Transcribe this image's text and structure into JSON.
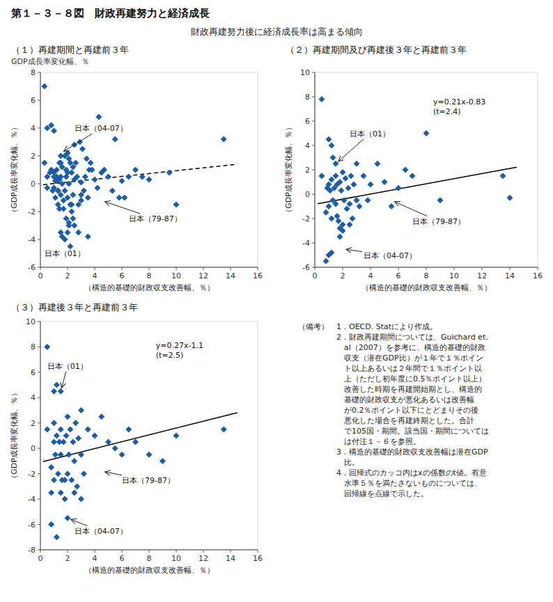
{
  "title": "第１－３－８図　財政再建努力と経済成長",
  "subtitle": "財政再建努力後に経済成長率は高まる傾向",
  "notes": "（備考）　1．OECD. Statにより作成。\n　　　　　2．財政再建期間については、Guichard et.\n　　　　　　al（2007）を参考に、構造的基礎的財政\n　　　　　　収支（潜在GDP比）が１年で１％ポイン\n　　　　　　ト以上あるいは２年間で１％ポイント以\n　　　　　　上（ただし初年度に0.5％ポイント以上）\n　　　　　　改善した時期を再建開始期とし、構造的\n　　　　　　基礎的財政収支が悪化あるいは改善幅\n　　　　　　が0.2％ポイント以下にとどまりその後\n　　　　　　悪化した場合を再建終期とした。合計\n　　　　　　で105国・期間。該当国・期間については\n　　　　　　は付注１－６を参照。\n　　　　　3．構造的基礎的財政収支改善幅は潜在GDP\n　　　　　　比。\n　　　　　4．回帰式のカッコ内はxの係数のt値。有意\n　　　　　　水準５％を満たさないものについては、\n　　　　　　回帰線を点線で示した。",
  "chart_data": [
    {
      "type": "scatter",
      "title": "（１）再建期間と再建前３年",
      "ylabel_top": "GDP成長率変化幅、％",
      "xlabel": "（構造的基礎的財政収支改善幅、％）",
      "ylabel": "（GDP成長率変化幅、％）",
      "xlim": [
        0,
        16
      ],
      "ylim": [
        -6,
        8
      ],
      "xticks": [
        0,
        2,
        4,
        6,
        8,
        10,
        12,
        14,
        16
      ],
      "yticks": [
        -6,
        -4,
        -2,
        0,
        2,
        4,
        6,
        8
      ],
      "series": [
        {
          "type": "scatter",
          "marker": "diamond",
          "color": "#1a5ea8",
          "x": [
            0.3,
            0.5,
            0.5,
            0.7,
            0.8,
            0.9,
            1.0,
            1.0,
            1.0,
            1.1,
            1.1,
            1.2,
            1.2,
            1.3,
            1.3,
            1.4,
            1.4,
            1.5,
            1.5,
            1.5,
            1.5,
            1.6,
            1.6,
            1.7,
            1.8,
            1.8,
            1.9,
            1.9,
            2.0,
            2.0,
            2.0,
            2.1,
            2.1,
            2.1,
            2.2,
            2.2,
            2.3,
            2.3,
            2.4,
            2.4,
            2.5,
            2.5,
            2.6,
            2.7,
            2.8,
            2.9,
            3.0,
            3.0,
            3.1,
            3.2,
            3.3,
            3.4,
            3.5,
            3.6,
            3.7,
            3.8,
            4.0,
            4.2,
            4.3,
            4.5,
            4.7,
            5.0,
            5.3,
            5.5,
            5.8,
            6.0,
            6.2,
            6.5,
            7.0,
            7.5,
            8.0,
            9.5,
            10.0,
            13.5,
            0.3,
            0.5,
            0.8,
            1.0,
            1.2,
            1.3,
            1.4,
            1.5,
            1.6,
            1.7,
            1.8,
            1.9,
            2.0,
            2.1,
            2.2,
            2.3,
            2.4,
            2.5,
            2.8,
            3.0,
            3.5
          ],
          "values": [
            1.5,
            0.5,
            -0.3,
            0.8,
            1.0,
            -0.5,
            -0.3,
            0.5,
            0.8,
            0.2,
            -1.0,
            0.5,
            1.0,
            -0.5,
            -1.5,
            0.3,
            1.5,
            0.5,
            1.5,
            2.0,
            -0.8,
            0.0,
            1.2,
            -1.2,
            -0.5,
            2.0,
            0.5,
            1.0,
            2.2,
            0.8,
            -1.0,
            1.8,
            0.0,
            -3.0,
            1.5,
            -1.5,
            0.8,
            -2.0,
            1.2,
            -0.8,
            0.3,
            2.8,
            1.5,
            0.5,
            -1.5,
            3.0,
            0.1,
            -0.8,
            2.5,
            -0.5,
            0.5,
            1.8,
            -1.0,
            1.0,
            1.5,
            1.0,
            0.3,
            -0.3,
            4.8,
            0.8,
            1.0,
            0.5,
            -0.5,
            3.2,
            -1.0,
            0.2,
            -1.0,
            0.5,
            1.0,
            0.5,
            0.3,
            0.8,
            -1.5,
            3.2,
            7.0,
            4.0,
            4.2,
            3.8,
            0.2,
            -0.5,
            -1.8,
            -3.5,
            -3.8,
            -1.8,
            -4.0,
            -2.5,
            -3.5,
            -2.8,
            -4.5,
            -1.5,
            -2.5,
            -3.0,
            -3.5,
            -1.2,
            -3.8
          ]
        },
        {
          "type": "line",
          "line_style": "dashed",
          "color": "#000000",
          "x": [
            0.2,
            14.5
          ],
          "values": [
            -0.07,
            1.4
          ]
        }
      ],
      "annotations": [
        {
          "text": "日本（04-07）",
          "xy": [
            1.5,
            2.2
          ],
          "xytext": [
            2.5,
            4.0
          ]
        },
        {
          "text": "日本（79-87）",
          "xy": [
            4.5,
            -1.2
          ],
          "xytext": [
            6.5,
            -2.5
          ]
        },
        {
          "text": "日本（01）",
          "xytext": [
            0.3,
            -5.2
          ]
        }
      ]
    },
    {
      "type": "scatter",
      "title": "（２）再建期間及び再建後３年と再建前３年",
      "xlabel": "（構造的基礎的財政収支改善幅、％）",
      "ylabel": "（GDP成長率変化幅、％）",
      "xlim": [
        0,
        16
      ],
      "ylim": [
        -6,
        10
      ],
      "xticks": [
        0,
        2,
        4,
        6,
        8,
        10,
        12,
        14,
        16
      ],
      "yticks": [
        -6,
        -4,
        -2,
        0,
        2,
        4,
        6,
        8,
        10
      ],
      "series": [
        {
          "type": "scatter",
          "marker": "diamond",
          "color": "#1a5ea8",
          "x": [
            0.5,
            0.8,
            0.9,
            1.0,
            1.0,
            1.1,
            1.2,
            1.2,
            1.3,
            1.4,
            1.5,
            1.5,
            1.6,
            1.6,
            1.7,
            1.8,
            1.8,
            1.9,
            2.0,
            2.0,
            2.1,
            2.2,
            2.3,
            2.4,
            2.5,
            2.6,
            2.7,
            2.8,
            3.0,
            3.0,
            3.2,
            3.5,
            3.8,
            4.0,
            4.5,
            5.0,
            5.5,
            6.0,
            6.5,
            7.0,
            8.0,
            9.0,
            13.5,
            14.0,
            0.5,
            1.0,
            1.2,
            1.3,
            1.5,
            1.8,
            2.0,
            1.2,
            2.5,
            0.8,
            1.0
          ],
          "values": [
            1.5,
            -1.5,
            0.5,
            0.8,
            -1.0,
            0.3,
            1.2,
            -2.0,
            -0.5,
            0.5,
            -0.8,
            1.5,
            -1.8,
            0.8,
            -2.2,
            1.0,
            -2.8,
            0.3,
            -2.5,
            1.8,
            -0.5,
            1.3,
            -1.2,
            0.5,
            -0.8,
            1.5,
            -2.0,
            0.8,
            -0.5,
            2.5,
            -1.0,
            1.5,
            -0.5,
            0.8,
            2.5,
            1.0,
            -1.0,
            0.5,
            2.0,
            1.5,
            5.0,
            -0.5,
            1.5,
            -0.3,
            7.8,
            4.5,
            4.0,
            3.0,
            2.5,
            -3.5,
            -3.0,
            -4.8,
            -2.5,
            -5.5,
            -5.0
          ]
        },
        {
          "type": "line",
          "line_style": "solid",
          "color": "#000000",
          "x": [
            0.2,
            14.5
          ],
          "values": [
            -0.79,
            2.22
          ]
        }
      ],
      "equation": {
        "text": "y=0.21x-0.83\n(t=2.4)",
        "xytext": [
          8.5,
          8.0
        ]
      },
      "annotations": [
        {
          "text": "日本（01）",
          "xy": [
            1.5,
            2.5
          ],
          "xytext": [
            2.5,
            5.0
          ]
        },
        {
          "text": "日本（79-87）",
          "xy": [
            5.5,
            -0.5
          ],
          "xytext": [
            7.0,
            -2.2
          ]
        },
        {
          "text": "日本（04-07）",
          "xy": [
            2.0,
            -4.5
          ],
          "xytext": [
            3.5,
            -5.0
          ]
        }
      ]
    },
    {
      "type": "scatter",
      "title": "（３）再建後３年と再建前３年",
      "xlabel": "（構造的基礎的財政収支改善幅、％）",
      "ylabel": "（GDP成長率変化幅、％）",
      "xlim": [
        0,
        16
      ],
      "ylim": [
        -8,
        10
      ],
      "xticks": [
        0,
        2,
        4,
        6,
        8,
        10,
        12,
        14,
        16
      ],
      "yticks": [
        -8,
        -6,
        -4,
        -2,
        0,
        2,
        4,
        6,
        8,
        10
      ],
      "series": [
        {
          "type": "scatter",
          "marker": "diamond",
          "color": "#1a5ea8",
          "x": [
            0.5,
            0.8,
            1.0,
            1.0,
            1.1,
            1.2,
            1.3,
            1.4,
            1.5,
            1.5,
            1.6,
            1.7,
            1.8,
            1.9,
            2.0,
            2.0,
            2.1,
            2.2,
            2.3,
            2.4,
            2.5,
            2.6,
            2.7,
            2.8,
            3.0,
            3.0,
            3.2,
            3.5,
            4.0,
            4.5,
            5.0,
            5.5,
            6.0,
            6.5,
            7.0,
            8.0,
            9.0,
            10.0,
            13.5,
            0.5,
            1.0,
            1.2,
            1.5,
            0.8,
            1.0,
            1.5,
            2.0,
            1.8,
            2.5,
            3.0,
            1.2,
            0.8
          ],
          "values": [
            1.5,
            -1.5,
            0.5,
            2.0,
            -0.5,
            1.0,
            -2.0,
            0.5,
            1.5,
            -0.5,
            -2.5,
            0.5,
            -2.5,
            1.0,
            -2.0,
            2.5,
            -0.5,
            1.5,
            -2.5,
            0.5,
            -1.0,
            2.0,
            -3.0,
            0.8,
            -0.5,
            3.0,
            -2.0,
            1.5,
            1.0,
            2.5,
            0.5,
            0.0,
            -0.5,
            1.5,
            0.5,
            -0.5,
            -1.0,
            1.0,
            1.5,
            8.0,
            4.5,
            5.0,
            4.5,
            -3.5,
            -2.5,
            -3.5,
            -5.5,
            -4.0,
            -3.5,
            -4.0,
            -7.0,
            -6.0
          ]
        },
        {
          "type": "line",
          "line_style": "solid",
          "color": "#000000",
          "x": [
            0.2,
            14.5
          ],
          "values": [
            -1.046,
            2.815
          ]
        }
      ],
      "equation": {
        "text": "y=0.27x-1.1\n(t=2.5)",
        "xytext": [
          8.5,
          8.5
        ]
      },
      "annotations": [
        {
          "text": "日本（01）",
          "xy": [
            1.5,
            4.5
          ],
          "xytext": [
            0.5,
            6.5
          ]
        },
        {
          "text": "日本（79-87）",
          "xy": [
            4.5,
            -1.8
          ],
          "xytext": [
            6.0,
            -2.5
          ]
        },
        {
          "text": "日本（04-07）",
          "xy": [
            2.0,
            -5.5
          ],
          "xytext": [
            2.5,
            -6.5
          ]
        }
      ]
    }
  ]
}
